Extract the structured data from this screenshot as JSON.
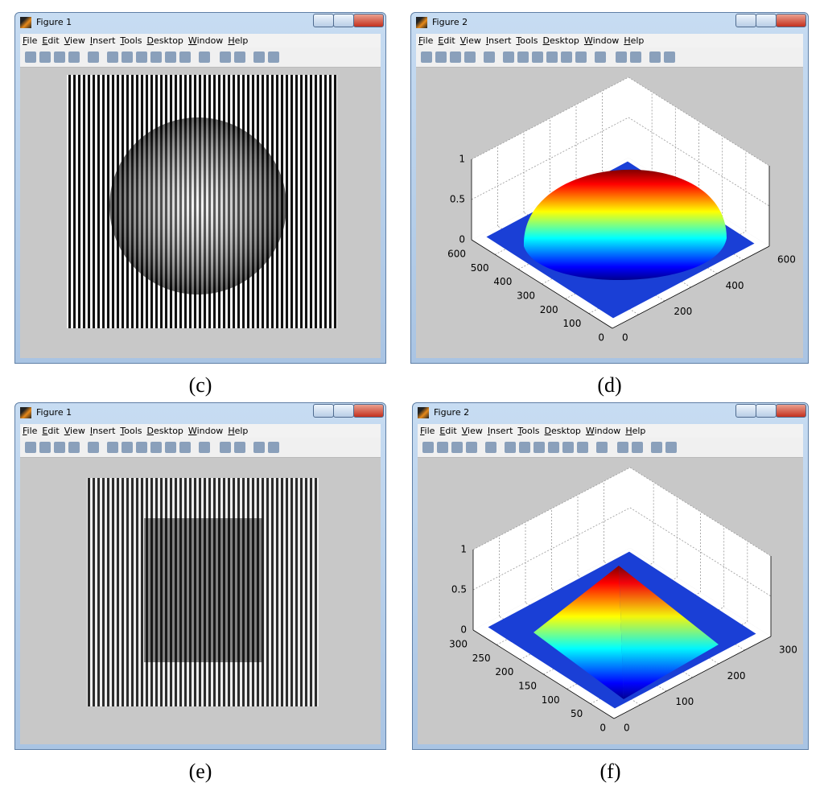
{
  "menu": [
    "File",
    "Edit",
    "View",
    "Insert",
    "Tools",
    "Desktop",
    "Window",
    "Help"
  ],
  "panels": [
    {
      "caption": "(c)",
      "title": "Figure 1"
    },
    {
      "caption": "(d)",
      "title": "Figure 2",
      "axes": {
        "zticks": [
          "0",
          "0.5",
          "1"
        ],
        "yticks": [
          "600",
          "500",
          "400",
          "300",
          "200",
          "100",
          "0"
        ],
        "xticks": [
          "0",
          "200",
          "400",
          "600"
        ]
      }
    },
    {
      "caption": "(e)",
      "title": "Figure 1"
    },
    {
      "caption": "(f)",
      "title": "Figure 2",
      "axes": {
        "zticks": [
          "0",
          "0.5",
          "1"
        ],
        "yticks": [
          "300",
          "250",
          "200",
          "150",
          "100",
          "50",
          "0"
        ],
        "xticks": [
          "0",
          "100",
          "200",
          "300"
        ]
      }
    }
  ]
}
